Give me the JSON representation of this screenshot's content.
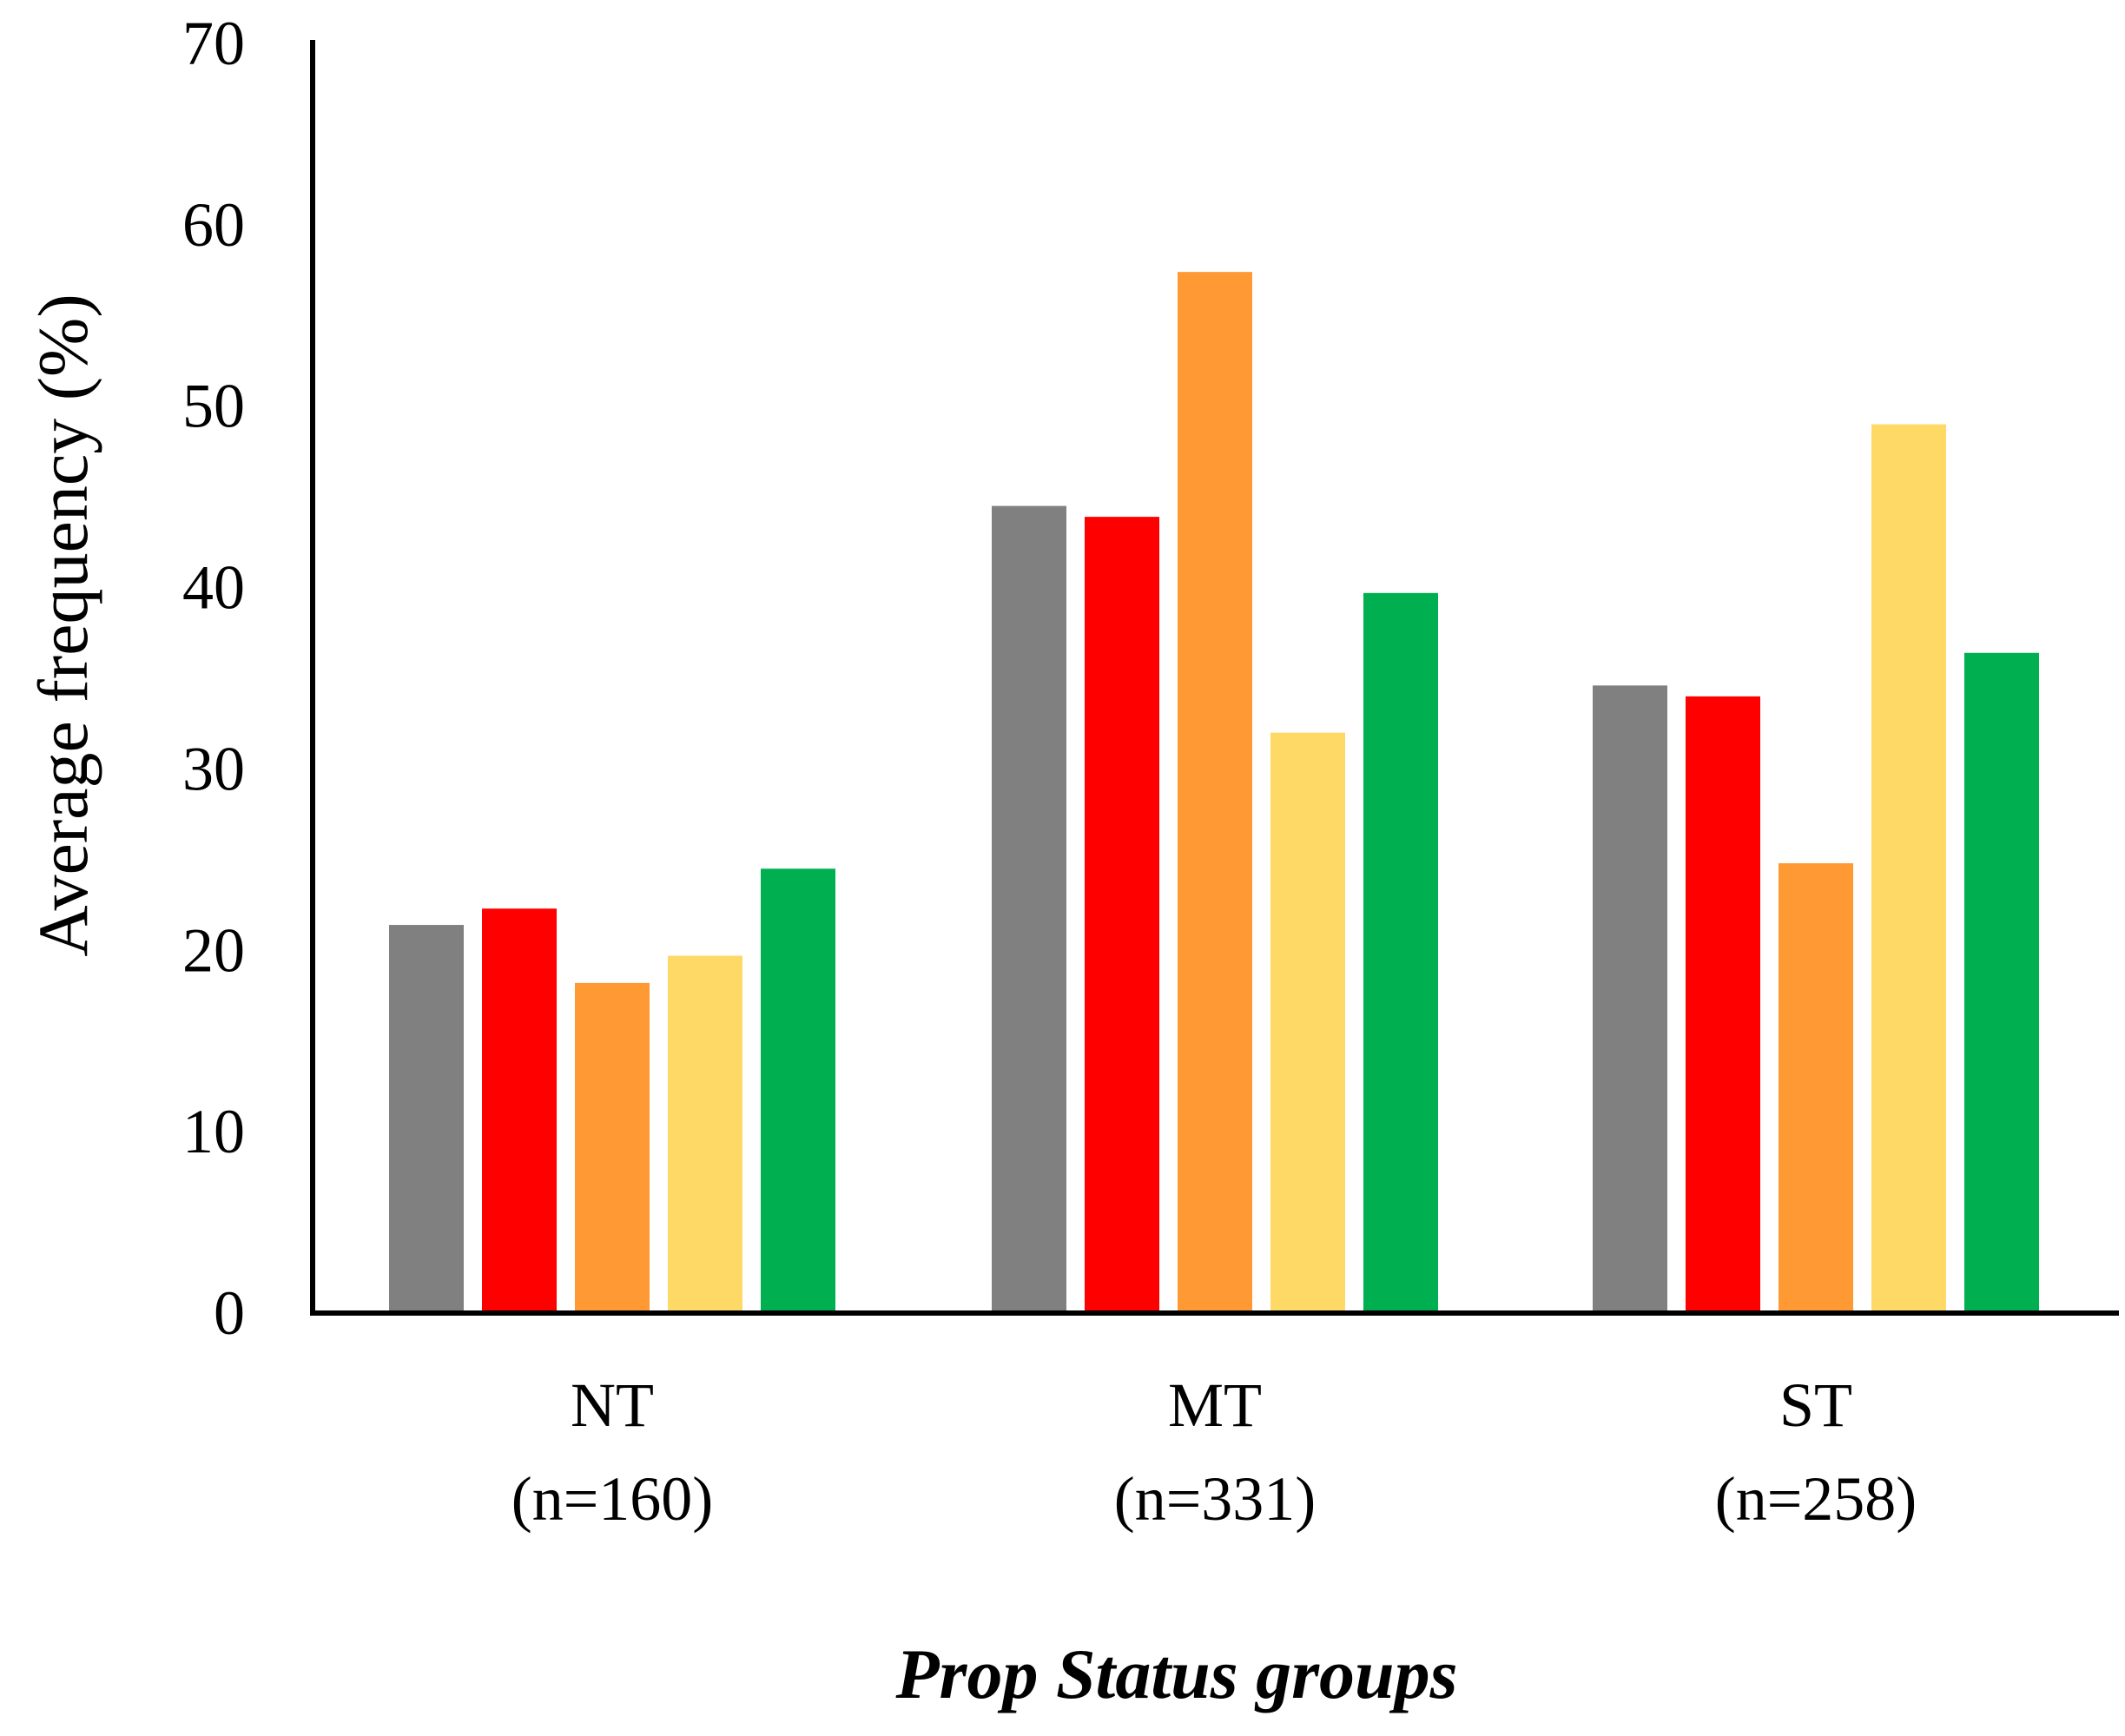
{
  "chart_data": {
    "type": "bar",
    "title": "",
    "ylabel": "Average  frequency  (%)",
    "xlabel": "Prop Status groups",
    "ylim": [
      0,
      70
    ],
    "yticks": [
      0,
      10,
      20,
      30,
      40,
      50,
      60,
      70
    ],
    "categories": [
      {
        "name": "NT",
        "n": "(n=160)"
      },
      {
        "name": "MT",
        "n": "(n=331)"
      },
      {
        "name": "ST",
        "n": "(n=258)"
      }
    ],
    "series": [
      {
        "color": "#808080",
        "values": [
          21.4,
          44.5,
          34.6
        ]
      },
      {
        "color": "#ff0000",
        "values": [
          22.3,
          43.9,
          34.0
        ]
      },
      {
        "color": "#ff9933",
        "values": [
          18.2,
          57.4,
          24.8
        ]
      },
      {
        "color": "#ffd966",
        "values": [
          19.7,
          32.0,
          49.0
        ]
      },
      {
        "color": "#00b050",
        "values": [
          24.5,
          39.7,
          36.4
        ]
      }
    ],
    "grid": false,
    "legend": "none"
  }
}
